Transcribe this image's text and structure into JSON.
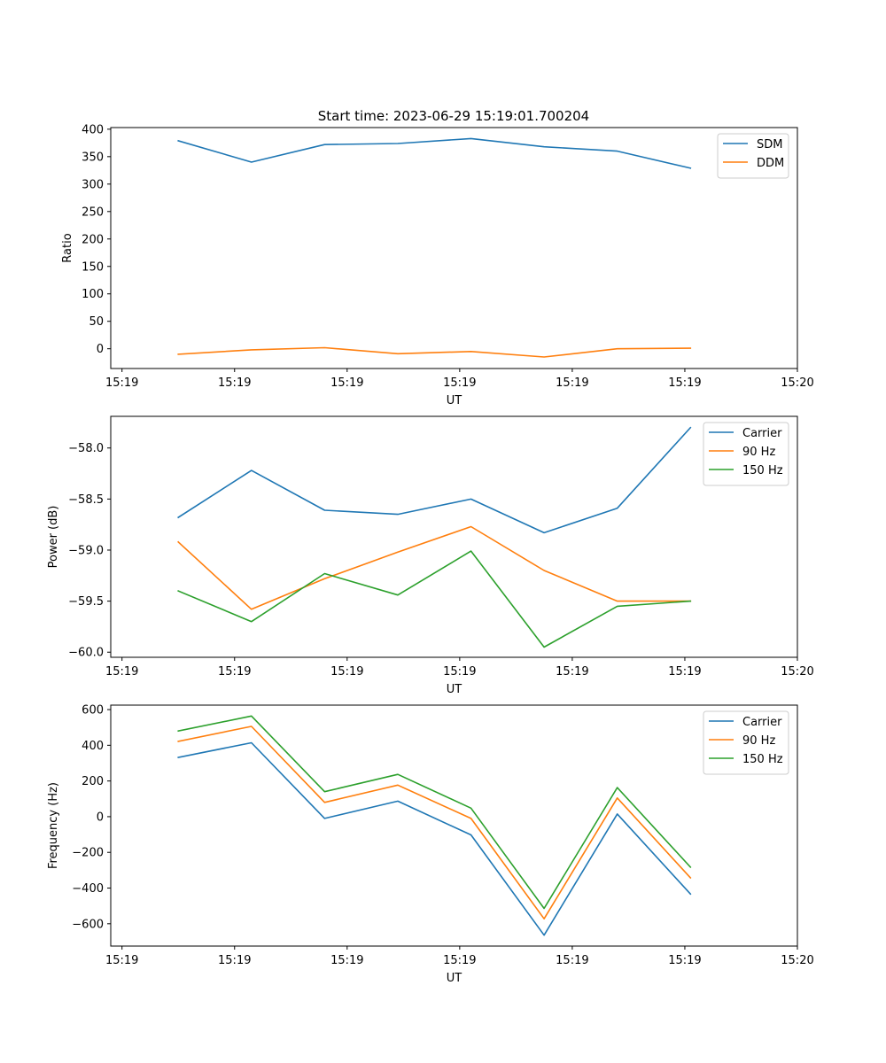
{
  "figure": {
    "title": "Start time: 2023-06-29 15:19:01.700204"
  },
  "colors": {
    "blue": "#1f77b4",
    "orange": "#ff7f0e",
    "green": "#2ca02c"
  },
  "chart_data": [
    {
      "type": "line",
      "xlabel": "UT",
      "ylabel": "Ratio",
      "x": [
        0.5,
        1.15,
        1.8,
        2.45,
        3.1,
        3.75,
        4.4,
        5.05
      ],
      "xlim": [
        -0.1,
        6.0
      ],
      "xticks": [
        0,
        1,
        2,
        3,
        4,
        5,
        6
      ],
      "xtick_labels": [
        "15:19",
        "15:19",
        "15:19",
        "15:19",
        "15:19",
        "15:19",
        "15:20"
      ],
      "ylim": [
        -36,
        403
      ],
      "yticks": [
        0,
        50,
        100,
        150,
        200,
        250,
        300,
        350,
        400
      ],
      "ytick_labels": [
        "0",
        "50",
        "100",
        "150",
        "200",
        "250",
        "300",
        "350",
        "400"
      ],
      "legend": "top-right",
      "series": [
        {
          "name": "SDM",
          "color": "#1f77b4",
          "values": [
            379,
            340,
            372,
            374,
            383,
            368,
            360,
            329
          ]
        },
        {
          "name": "DDM",
          "color": "#ff7f0e",
          "values": [
            -10,
            -2,
            2,
            -9,
            -5,
            -15,
            0,
            1
          ]
        }
      ]
    },
    {
      "type": "line",
      "xlabel": "UT",
      "ylabel": "Power (dB)",
      "x": [
        0.5,
        1.15,
        1.8,
        2.45,
        3.1,
        3.75,
        4.4,
        5.05
      ],
      "xlim": [
        -0.1,
        6.0
      ],
      "xticks": [
        0,
        1,
        2,
        3,
        4,
        5,
        6
      ],
      "xtick_labels": [
        "15:19",
        "15:19",
        "15:19",
        "15:19",
        "15:19",
        "15:19",
        "15:20"
      ],
      "ylim": [
        -60.05,
        -57.69
      ],
      "yticks": [
        -60.0,
        -59.5,
        -59.0,
        -58.5,
        -58.0
      ],
      "ytick_labels": [
        "−60.0",
        "−59.5",
        "−59.0",
        "−58.5",
        "−58.0"
      ],
      "legend": "top-right",
      "series": [
        {
          "name": "Carrier",
          "color": "#1f77b4",
          "values": [
            -58.68,
            -58.22,
            -58.61,
            -58.65,
            -58.5,
            -58.83,
            -58.59,
            -57.8
          ]
        },
        {
          "name": "90 Hz",
          "color": "#ff7f0e",
          "values": [
            -58.92,
            -59.58,
            -59.28,
            -59.02,
            -58.77,
            -59.2,
            -59.5,
            -59.5
          ]
        },
        {
          "name": "150 Hz",
          "color": "#2ca02c",
          "values": [
            -59.4,
            -59.7,
            -59.23,
            -59.44,
            -59.01,
            -59.95,
            -59.55,
            -59.5
          ]
        }
      ]
    },
    {
      "type": "line",
      "xlabel": "UT",
      "ylabel": "Frequency (Hz)",
      "x": [
        0.5,
        1.15,
        1.8,
        2.45,
        3.1,
        3.75,
        4.4,
        5.05
      ],
      "xlim": [
        -0.1,
        6.0
      ],
      "xticks": [
        0,
        1,
        2,
        3,
        4,
        5,
        6
      ],
      "xtick_labels": [
        "15:19",
        "15:19",
        "15:19",
        "15:19",
        "15:19",
        "15:19",
        "15:20"
      ],
      "ylim": [
        -725,
        625
      ],
      "yticks": [
        -600,
        -400,
        -200,
        0,
        200,
        400,
        600
      ],
      "ytick_labels": [
        "−600",
        "−400",
        "−200",
        "0",
        "200",
        "400",
        "600"
      ],
      "legend": "top-right",
      "series": [
        {
          "name": "Carrier",
          "color": "#1f77b4",
          "values": [
            332,
            414,
            -10,
            87,
            -102,
            -664,
            15,
            -433
          ]
        },
        {
          "name": "90 Hz",
          "color": "#ff7f0e",
          "values": [
            422,
            506,
            80,
            177,
            -10,
            -572,
            105,
            -343
          ]
        },
        {
          "name": "150 Hz",
          "color": "#2ca02c",
          "values": [
            480,
            564,
            140,
            237,
            48,
            -514,
            163,
            -283
          ]
        }
      ]
    }
  ]
}
